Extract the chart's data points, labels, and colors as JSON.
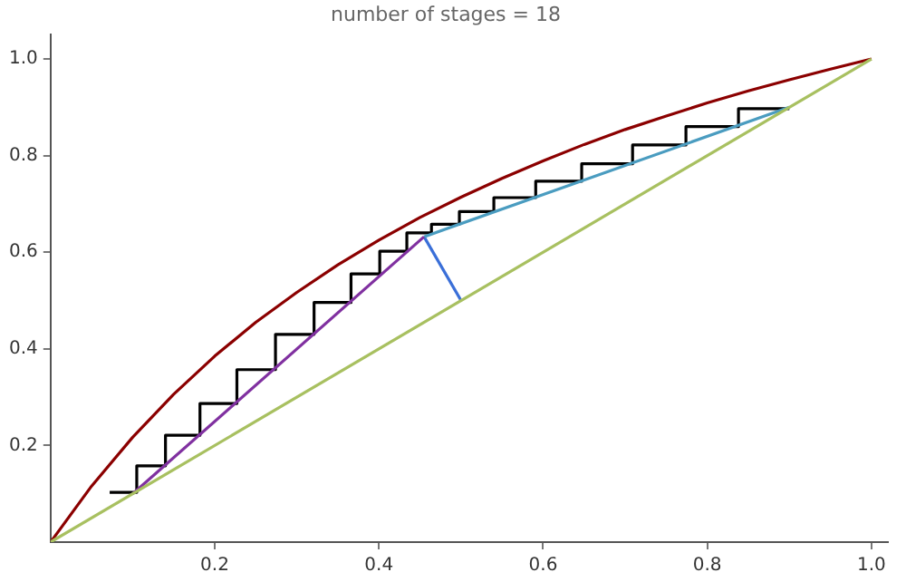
{
  "chart_data": {
    "type": "line",
    "title": "number of stages = 18",
    "xlim": [
      0,
      1.02
    ],
    "ylim": [
      0,
      1.05
    ],
    "xticks": [
      0.2,
      0.4,
      0.6,
      0.8,
      {
        "value": 1,
        "label": "1.0"
      }
    ],
    "yticks": [
      0.2,
      0.4,
      0.6,
      0.8,
      {
        "value": 1,
        "label": "1.0"
      }
    ],
    "grid": false,
    "legend": false,
    "marker": "none",
    "line_style": "solid",
    "series": [
      {
        "color": "#a8c060",
        "x": [
          0,
          1
        ],
        "values": [
          0,
          1
        ]
      },
      {
        "color": "#8b0000",
        "x": [
          0,
          0.05,
          0.1,
          0.15,
          0.2,
          0.25,
          0.3,
          0.35,
          0.4,
          0.45,
          0.5,
          0.55,
          0.6,
          0.65,
          0.7,
          0.75,
          0.8,
          0.85,
          0.9,
          0.95,
          1
        ],
        "values": [
          0,
          0.116,
          0.217,
          0.306,
          0.385,
          0.455,
          0.517,
          0.574,
          0.625,
          0.672,
          0.714,
          0.753,
          0.789,
          0.823,
          0.854,
          0.882,
          0.909,
          0.934,
          0.957,
          0.979,
          1
        ]
      },
      {
        "color": "#8030a0",
        "x": [
          0.1,
          0.455
        ],
        "values": [
          0.1,
          0.632
        ]
      },
      {
        "color": "#4a9cc0",
        "x": [
          0.455,
          0.9
        ],
        "values": [
          0.632,
          0.9
        ]
      },
      {
        "color": "#3a6fd8",
        "x": [
          0.5,
          0.455
        ],
        "values": [
          0.5,
          0.632
        ]
      },
      {
        "color": "#000000",
        "x": [
          0.9,
          0.838,
          0.838,
          0.774,
          0.774,
          0.709,
          0.709,
          0.647,
          0.647,
          0.591,
          0.591,
          0.54,
          0.54,
          0.498,
          0.498,
          0.464,
          0.464,
          0.434,
          0.434,
          0.401,
          0.401,
          0.366,
          0.366,
          0.321,
          0.321,
          0.274,
          0.274,
          0.227,
          0.227,
          0.182,
          0.182,
          0.14,
          0.14,
          0.105,
          0.105,
          0.072
        ],
        "values": [
          0.897,
          0.897,
          0.86,
          0.86,
          0.822,
          0.822,
          0.783,
          0.783,
          0.747,
          0.747,
          0.713,
          0.713,
          0.684,
          0.684,
          0.658,
          0.658,
          0.64,
          0.64,
          0.602,
          0.602,
          0.555,
          0.555,
          0.496,
          0.496,
          0.43,
          0.43,
          0.357,
          0.357,
          0.287,
          0.287,
          0.221,
          0.221,
          0.158,
          0.158,
          0.103,
          0.103
        ]
      }
    ]
  }
}
